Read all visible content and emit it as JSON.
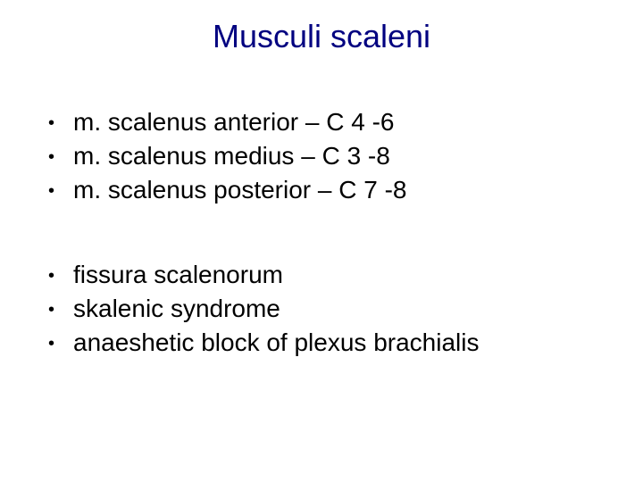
{
  "title": "Musculi scaleni",
  "title_color": "#000080",
  "title_fontsize": 36,
  "body_fontsize": 28,
  "text_color": "#000000",
  "background_color": "#ffffff",
  "bullet_char": "•",
  "groups": [
    {
      "items": [
        "m. scalenus anterior – C 4 -6",
        "m. scalenus medius – C 3 -8",
        "m. scalenus posterior – C 7 -8"
      ]
    },
    {
      "items": [
        "fissura scalenorum",
        "skalenic syndrome",
        "anaeshetic block of plexus brachialis"
      ]
    }
  ]
}
